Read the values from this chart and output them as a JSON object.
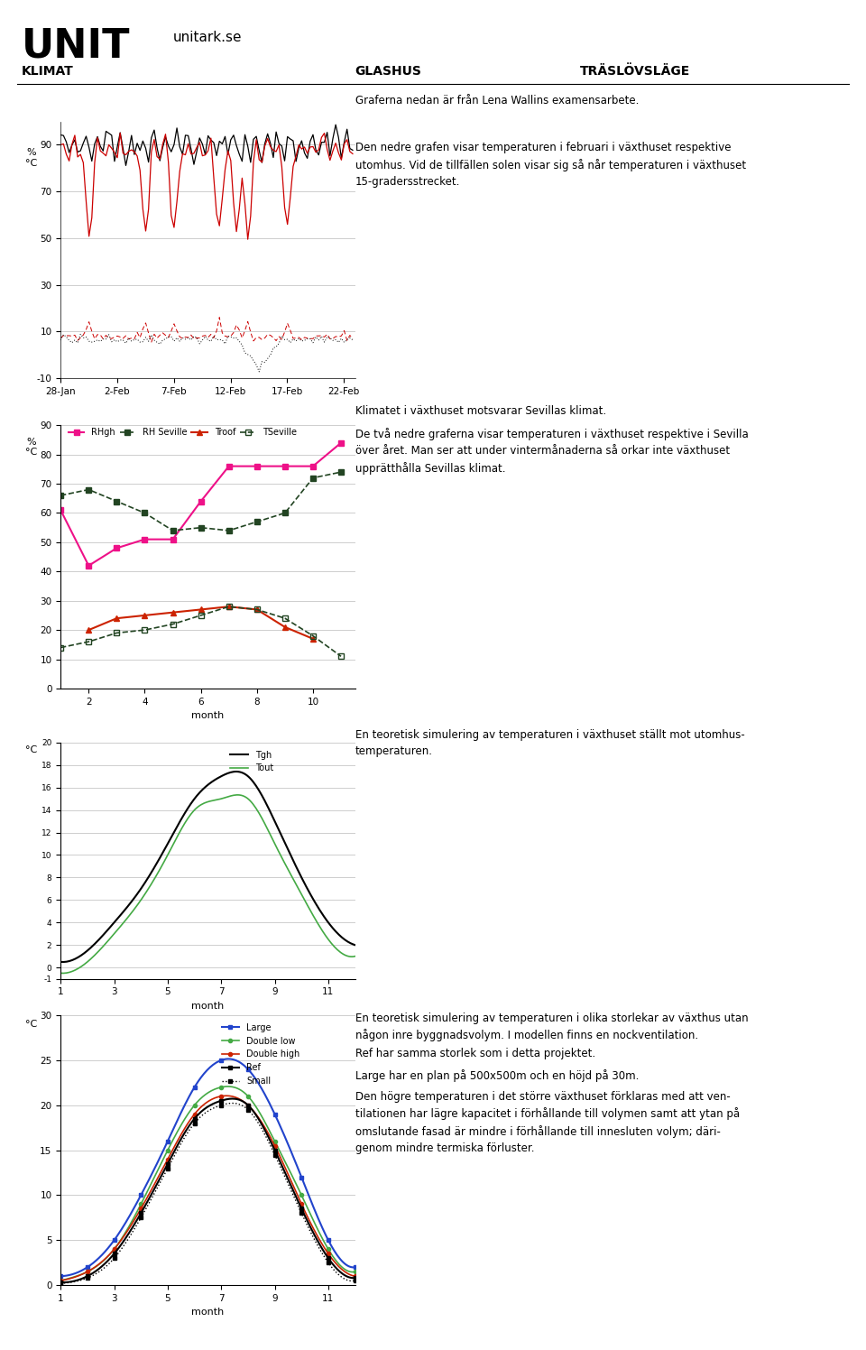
{
  "header_title": "UNIT",
  "header_subtitle": "unitark.se",
  "header_left1": "KLIMAT",
  "header_center": "GLASHUS",
  "header_right": "TRÄSLÖVSLÄGE",
  "graferna_text": "Graferna nedan är från Lena Wallins examensarbete.",
  "chart1_text_line1": "Den nedre grafen visar temperaturen i februari i växthuset respektive",
  "chart1_text_line2": "utomhus. Vid de tillfällen solen visar sig så når temperaturen i växthuset",
  "chart1_text_line3": "15-gradersstrecket.",
  "chart2_text_title": "Klimatet i växthuset motsvarar Sevillas klimat.",
  "chart2_text_line1": "De två nedre graferna visar temperaturen i växthuset respektive i Sevilla",
  "chart2_text_line2": "över året. Man ser att under vintermånaderna så orkar inte växthuset",
  "chart2_text_line3": "upprätthålla Sevillas klimat.",
  "chart3_text_line1": "En teoretisk simulering av temperaturen i växthuset ställt mot utomhus-",
  "chart3_text_line2": "temperaturen.",
  "chart4_text_line1": "En teoretisk simulering av temperaturen i olika storlekar av växthus utan",
  "chart4_text_line2": "någon inre byggnadsvolym. I modellen finns en nockventilation.",
  "chart4_text_line3": "Ref har samma storlek som i detta projektet.",
  "chart4_text_line4": "Large har en plan på 500x500m och en höjd på 30m.",
  "chart4_text_line5": "Den högre temperaturen i det större växthuset förklaras med att ven-",
  "chart4_text_line6": "tilationen har lägre kapacitet i förhållande till volymen samt att ytan på",
  "chart4_text_line7": "omslutande fasad är mindre i förhållande till innesluten volym; däri-",
  "chart4_text_line8": "genom mindre termiska förluster.",
  "chart2_rhgh_x": [
    1,
    2,
    3,
    4,
    5,
    6,
    7,
    8,
    9,
    10,
    11
  ],
  "chart2_rhgh_y": [
    61,
    42,
    48,
    51,
    51,
    64,
    76,
    76,
    76,
    76,
    84
  ],
  "chart2_rhsev_x": [
    1,
    2,
    3,
    4,
    5,
    6,
    7,
    8,
    9,
    10,
    11
  ],
  "chart2_rhsev_y": [
    66,
    68,
    64,
    60,
    54,
    55,
    54,
    57,
    60,
    72,
    74
  ],
  "chart2_troof_x": [
    2,
    3,
    4,
    5,
    6,
    7,
    8,
    9,
    10
  ],
  "chart2_troof_y": [
    20,
    24,
    25,
    26,
    27,
    28,
    27,
    21,
    17
  ],
  "chart2_tsev_x": [
    1,
    2,
    3,
    4,
    5,
    6,
    7,
    8,
    9,
    10,
    11
  ],
  "chart2_tsev_y": [
    14,
    16,
    19,
    20,
    22,
    25,
    28,
    27,
    24,
    18,
    11
  ],
  "chart3_months": [
    1,
    2,
    3,
    4,
    5,
    6,
    7,
    8,
    9,
    10,
    11,
    12
  ],
  "chart3_tgh": [
    0.5,
    1.5,
    4,
    7,
    11,
    15,
    17,
    17,
    13,
    8,
    4,
    2
  ],
  "chart3_tout": [
    -0.5,
    0.5,
    3,
    6,
    10,
    14,
    15,
    15,
    11,
    6.5,
    2.5,
    1
  ],
  "chart4_months": [
    1,
    2,
    3,
    4,
    5,
    6,
    7,
    8,
    9,
    10,
    11,
    12
  ],
  "chart4_large": [
    1,
    2,
    5,
    10,
    16,
    22,
    25,
    24,
    19,
    12,
    5,
    2
  ],
  "chart4_double_low": [
    0.5,
    1.5,
    4,
    9,
    15,
    20,
    22,
    21,
    16,
    10,
    4,
    1.5
  ],
  "chart4_double_high": [
    0.5,
    1.5,
    4,
    8.5,
    14,
    19,
    21,
    20,
    15.5,
    9,
    3.5,
    1
  ],
  "chart4_ref": [
    0.3,
    1,
    3.5,
    8,
    13.5,
    18.5,
    20.5,
    20,
    15,
    8.5,
    3,
    0.8
  ],
  "chart4_small": [
    0.2,
    0.8,
    3,
    7.5,
    13,
    18,
    20,
    19.5,
    14.5,
    8,
    2.5,
    0.5
  ]
}
